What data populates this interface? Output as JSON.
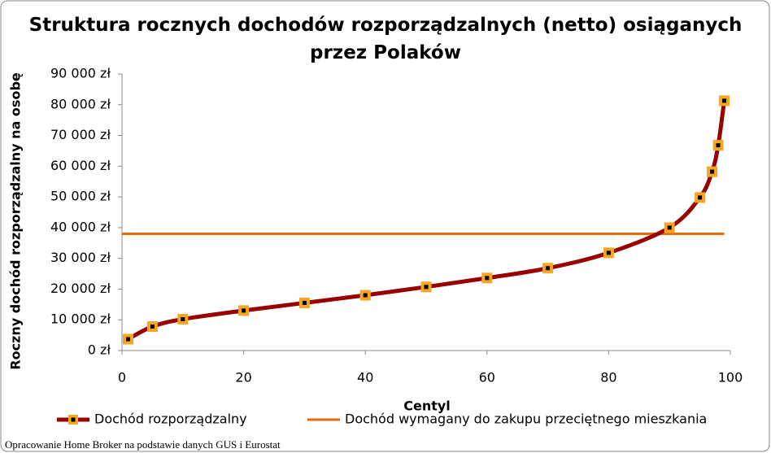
{
  "chart_data": {
    "type": "line",
    "title": "Struktura rocznych dochodów rozporządzalnych (netto) osiąganych przez Polaków",
    "x_label": "Centyl",
    "y_label": "Roczny dochód rozporządzalny na osobę",
    "source": "Opracowanie Home Broker na podstawie danych GUS i Eurostat",
    "xlim": [
      0,
      100
    ],
    "ylim": [
      0,
      90000
    ],
    "xticks": [
      0,
      20,
      40,
      60,
      80,
      100
    ],
    "yticks": [
      {
        "value": 0,
        "label": "0 zł"
      },
      {
        "value": 10000,
        "label": "10 000 zł"
      },
      {
        "value": 20000,
        "label": "20 000 zł"
      },
      {
        "value": 30000,
        "label": "30 000 zł"
      },
      {
        "value": 40000,
        "label": "40 000 zł"
      },
      {
        "value": 50000,
        "label": "50 000 zł"
      },
      {
        "value": 60000,
        "label": "60 000 zł"
      },
      {
        "value": 70000,
        "label": "70 000 zł"
      },
      {
        "value": 80000,
        "label": "80 000 zł"
      },
      {
        "value": 90000,
        "label": "90 000 zł"
      }
    ],
    "series": [
      {
        "name": "Dochód rozporządzalny",
        "color": "#990000",
        "marker_color": "#f5a623",
        "x": [
          1,
          5,
          10,
          20,
          30,
          40,
          50,
          60,
          70,
          80,
          90,
          95,
          97,
          98,
          99
        ],
        "values": [
          3700,
          7800,
          10200,
          13000,
          15500,
          18000,
          20700,
          23600,
          26800,
          31800,
          40000,
          49800,
          58200,
          66800,
          81300
        ]
      },
      {
        "name": "Dochód wymagany do zakupu przeciętnego mieszkania",
        "color": "#e46c0a",
        "x": [
          0,
          99
        ],
        "values": [
          38000,
          38000
        ]
      }
    ]
  }
}
